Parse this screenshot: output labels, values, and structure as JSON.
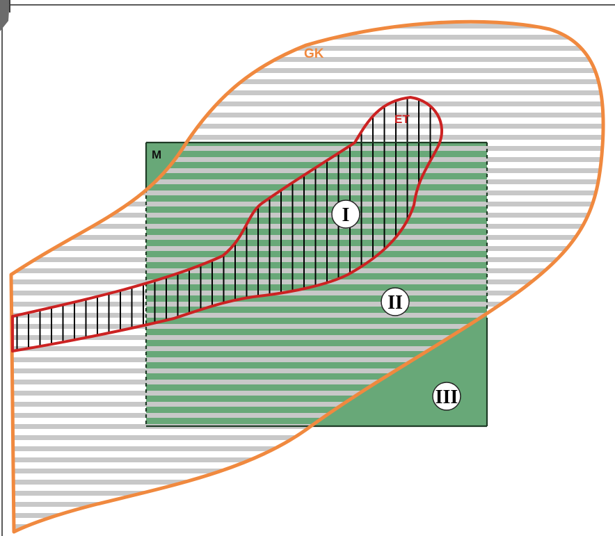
{
  "diagram": {
    "labels": {
      "gk": "GK",
      "et": "ET",
      "m": "M",
      "region_1": "I",
      "region_2": "II",
      "region_3": "III"
    },
    "colors": {
      "gk_outline": "#f0893f",
      "et_outline": "#cc2222",
      "m_fill": "#68a878",
      "m_border": "#1f3b26",
      "hatch_gray": "#c8c8c8",
      "hatch_black": "#000000",
      "frame": "#5a5a5a"
    }
  }
}
